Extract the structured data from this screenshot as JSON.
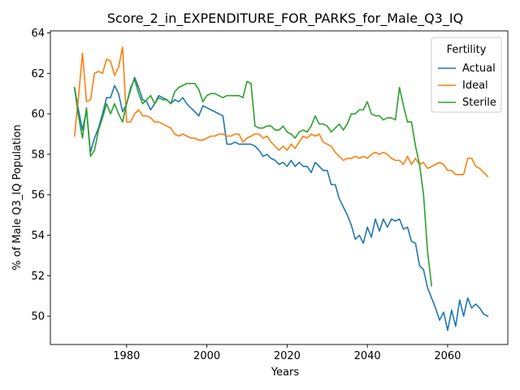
{
  "chart_data": {
    "type": "line",
    "title": "Score_2_in_EXPENDITURE_FOR_PARKS_for_Male_Q3_IQ",
    "xlabel": "Years",
    "ylabel": "% of Male Q3_IQ Population",
    "xlim": [
      1961,
      2075
    ],
    "ylim": [
      48.6,
      64.1
    ],
    "xticks": [
      1980,
      2000,
      2020,
      2040,
      2060
    ],
    "yticks": [
      50,
      52,
      54,
      56,
      58,
      60,
      62,
      64
    ],
    "grid": false,
    "legend": {
      "title": "Fertility",
      "placement": "top-right"
    },
    "series": [
      {
        "name": "Actual",
        "color": "#1f77b4",
        "x": [
          1967,
          1968,
          1969,
          1970,
          1971,
          1972,
          1973,
          1974,
          1975,
          1976,
          1977,
          1978,
          1979,
          1980,
          1981,
          1982,
          1983,
          1984,
          1985,
          1986,
          1987,
          1988,
          1989,
          1990,
          1991,
          1992,
          1993,
          1994,
          1995,
          1996,
          1997,
          1998,
          1999,
          2000,
          2001,
          2002,
          2003,
          2004,
          2005,
          2006,
          2007,
          2008,
          2009,
          2010,
          2011,
          2012,
          2013,
          2014,
          2015,
          2016,
          2017,
          2018,
          2019,
          2020,
          2021,
          2022,
          2023,
          2024,
          2025,
          2026,
          2027,
          2028,
          2029,
          2030,
          2031,
          2032,
          2033,
          2034,
          2035,
          2036,
          2037,
          2038,
          2039,
          2040,
          2041,
          2042,
          2043,
          2044,
          2045,
          2046,
          2047,
          2048,
          2049,
          2050,
          2051,
          2052,
          2053,
          2054,
          2055,
          2056,
          2057,
          2058,
          2059,
          2060,
          2061,
          2062,
          2063,
          2064,
          2065,
          2066,
          2067,
          2068,
          2069,
          2070
        ],
        "values": [
          61.3,
          60.2,
          59.2,
          60.2,
          58.1,
          58.8,
          59.3,
          60.0,
          60.8,
          60.8,
          61.4,
          61.0,
          60.1,
          60.5,
          61.2,
          61.8,
          61.3,
          60.7,
          60.6,
          60.2,
          60.5,
          60.9,
          60.8,
          60.7,
          60.5,
          60.7,
          60.6,
          60.8,
          60.5,
          60.3,
          60.1,
          59.9,
          60.4,
          60.3,
          60.2,
          60.1,
          60.0,
          59.9,
          58.5,
          58.5,
          58.6,
          58.5,
          58.5,
          58.5,
          58.5,
          58.4,
          58.2,
          57.9,
          58.0,
          57.8,
          57.7,
          57.5,
          57.6,
          57.4,
          57.7,
          57.4,
          57.6,
          57.4,
          57.4,
          57.1,
          57.6,
          57.4,
          57.2,
          57.2,
          56.5,
          56.5,
          55.8,
          55.4,
          55.0,
          54.5,
          53.8,
          54.0,
          53.6,
          54.4,
          53.9,
          54.8,
          54.2,
          54.8,
          54.4,
          54.8,
          54.7,
          54.8,
          54.3,
          54.4,
          53.7,
          53.6,
          52.5,
          52.3,
          51.4,
          50.9,
          50.4,
          49.8,
          50.2,
          49.3,
          50.3,
          49.5,
          50.8,
          50.0,
          50.9,
          50.4,
          50.6,
          50.4,
          50.1,
          50.0
        ]
      },
      {
        "name": "Ideal",
        "color": "#ff7f0e",
        "x": [
          1967,
          1968,
          1969,
          1970,
          1971,
          1972,
          1973,
          1974,
          1975,
          1976,
          1977,
          1978,
          1979,
          1980,
          1981,
          1982,
          1983,
          1984,
          1985,
          1986,
          1987,
          1988,
          1989,
          1990,
          1991,
          1992,
          1993,
          1994,
          1995,
          1996,
          1997,
          1998,
          1999,
          2000,
          2001,
          2002,
          2003,
          2004,
          2005,
          2006,
          2007,
          2008,
          2009,
          2010,
          2011,
          2012,
          2013,
          2014,
          2015,
          2016,
          2017,
          2018,
          2019,
          2020,
          2021,
          2022,
          2023,
          2024,
          2025,
          2026,
          2027,
          2028,
          2029,
          2030,
          2031,
          2032,
          2033,
          2034,
          2035,
          2036,
          2037,
          2038,
          2039,
          2040,
          2041,
          2042,
          2043,
          2044,
          2045,
          2046,
          2047,
          2048,
          2049,
          2050,
          2051,
          2052,
          2053,
          2054,
          2055,
          2056,
          2057,
          2058,
          2059,
          2060,
          2061,
          2062,
          2063,
          2064,
          2065,
          2066,
          2067,
          2068,
          2069,
          2070
        ],
        "values": [
          58.9,
          60.8,
          63.0,
          60.6,
          60.7,
          62.0,
          62.1,
          62.0,
          62.7,
          62.6,
          61.9,
          62.3,
          63.3,
          59.6,
          59.6,
          60.0,
          60.2,
          59.9,
          59.9,
          59.8,
          59.6,
          59.6,
          59.5,
          59.4,
          59.3,
          59.0,
          58.9,
          59.0,
          58.9,
          58.8,
          58.8,
          58.7,
          58.7,
          58.8,
          58.9,
          58.9,
          59.0,
          59.0,
          58.9,
          58.9,
          59.0,
          59.0,
          58.6,
          58.8,
          58.9,
          59.0,
          59.0,
          58.8,
          58.9,
          58.6,
          58.4,
          58.2,
          58.4,
          58.2,
          58.5,
          58.3,
          58.6,
          58.9,
          58.8,
          59.0,
          58.9,
          59.0,
          58.6,
          58.5,
          58.4,
          58.1,
          57.9,
          57.7,
          57.8,
          57.8,
          57.9,
          57.8,
          57.9,
          57.8,
          58.0,
          58.1,
          58.0,
          58.1,
          58.0,
          57.8,
          57.7,
          57.7,
          57.5,
          57.9,
          57.5,
          57.8,
          57.5,
          57.6,
          57.3,
          57.4,
          57.5,
          57.6,
          57.5,
          57.2,
          57.2,
          57.0,
          57.0,
          57.0,
          57.8,
          57.8,
          57.4,
          57.3,
          57.1,
          56.9
        ]
      },
      {
        "name": "Sterile",
        "color": "#2ca02c",
        "x": [
          1967,
          1968,
          1969,
          1970,
          1971,
          1972,
          1973,
          1974,
          1975,
          1976,
          1977,
          1978,
          1979,
          1980,
          1981,
          1982,
          1983,
          1984,
          1985,
          1986,
          1987,
          1988,
          1989,
          1990,
          1991,
          1992,
          1993,
          1994,
          1995,
          1996,
          1997,
          1998,
          1999,
          2000,
          2001,
          2002,
          2003,
          2004,
          2005,
          2006,
          2007,
          2008,
          2009,
          2010,
          2011,
          2012,
          2013,
          2014,
          2015,
          2016,
          2017,
          2018,
          2019,
          2020,
          2021,
          2022,
          2023,
          2024,
          2025,
          2026,
          2027,
          2028,
          2029,
          2030,
          2031,
          2032,
          2033,
          2034,
          2035,
          2036,
          2037,
          2038,
          2039,
          2040,
          2041,
          2042,
          2043,
          2044,
          2045,
          2046,
          2047,
          2048,
          2049,
          2050,
          2051,
          2052,
          2053,
          2054,
          2055,
          2056
        ],
        "values": [
          61.3,
          59.9,
          58.8,
          60.3,
          57.9,
          58.2,
          59.2,
          59.8,
          60.5,
          60.0,
          60.5,
          60.0,
          59.6,
          60.5,
          61.3,
          61.7,
          61.0,
          60.5,
          60.7,
          60.9,
          60.5,
          60.8,
          60.7,
          60.7,
          60.5,
          61.1,
          61.3,
          61.4,
          61.5,
          61.5,
          61.5,
          61.2,
          60.6,
          60.9,
          61.0,
          61.0,
          60.9,
          60.8,
          60.9,
          60.9,
          60.9,
          60.9,
          60.8,
          61.6,
          61.5,
          59.4,
          59.3,
          59.3,
          59.4,
          59.4,
          59.2,
          59.2,
          59.4,
          59.1,
          59.0,
          58.8,
          59.1,
          59.2,
          59.1,
          59.4,
          59.9,
          59.5,
          59.5,
          59.4,
          59.1,
          59.3,
          59.5,
          59.2,
          59.5,
          60.0,
          60.0,
          60.2,
          60.2,
          60.6,
          60.0,
          59.9,
          59.9,
          59.7,
          59.8,
          59.8,
          59.7,
          61.3,
          60.4,
          59.6,
          59.6,
          58.4,
          57.5,
          56.0,
          53.2,
          51.5
        ]
      }
    ]
  }
}
